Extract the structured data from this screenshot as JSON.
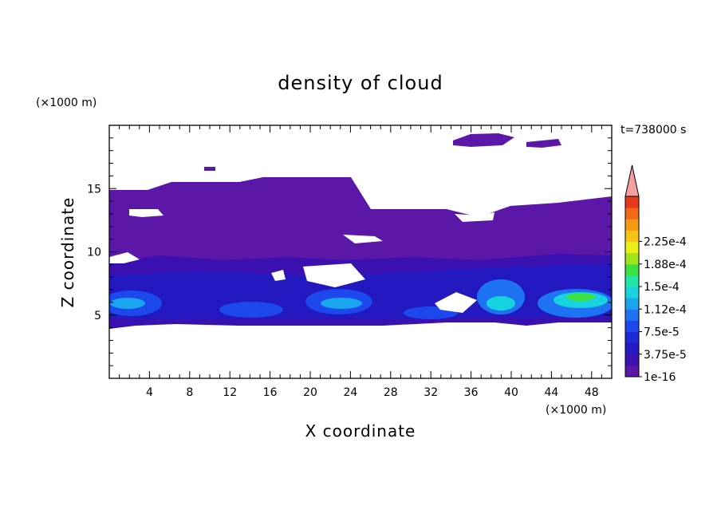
{
  "chart_data": {
    "type": "heatmap",
    "title": "density of cloud",
    "xlabel": "X coordinate",
    "ylabel": "Z coordinate",
    "x_unit": "(×1000 m)",
    "y_unit": "(×1000 m)",
    "time_label": "t=738000 s",
    "xlim": [
      0,
      50
    ],
    "ylim": [
      0,
      20
    ],
    "x_ticks": [
      "4",
      "8",
      "12",
      "16",
      "20",
      "24",
      "28",
      "32",
      "36",
      "40",
      "44",
      "48"
    ],
    "y_ticks": [
      "5",
      "10",
      "15"
    ],
    "colorbar": {
      "labels": [
        "1e-16",
        "3.75e-5",
        "7.5e-5",
        "1.12e-4",
        "1.5e-4",
        "1.88e-4",
        "2.25e-4"
      ],
      "colors": [
        "#5b17a8",
        "#3a10b0",
        "#2418c0",
        "#1c2bd6",
        "#1c48ee",
        "#1e73f3",
        "#19a6ee",
        "#18d2e0",
        "#20e6a8",
        "#3be23f",
        "#9fe51c",
        "#e8ee16",
        "#f5c414",
        "#f59a12",
        "#f26b16",
        "#e83a1a"
      ],
      "overflow_color": "#f5a0a0"
    },
    "regions": [
      {
        "x": 0,
        "z": 9.3,
        "w": 50,
        "h": 5.6,
        "value": "1e-16"
      },
      {
        "x": 0,
        "z": 4.2,
        "w": 50,
        "h": 5.2,
        "value": "3.75e-5"
      },
      {
        "x": 0,
        "z": 5.0,
        "w": 50,
        "h": 3.0,
        "value": "7.5e-5"
      },
      {
        "x": 1.5,
        "z": 5.2,
        "w": 4,
        "h": 1.5,
        "value": "7.5e-5"
      },
      {
        "x": 21,
        "z": 5.3,
        "w": 5,
        "h": 1.6,
        "value": "7.5e-5"
      },
      {
        "x": 38,
        "z": 5.3,
        "w": 3,
        "h": 2.0,
        "value": "1.12e-4"
      },
      {
        "x": 44,
        "z": 5.5,
        "w": 5,
        "h": 1.3,
        "value": "1.5e-4"
      }
    ]
  }
}
